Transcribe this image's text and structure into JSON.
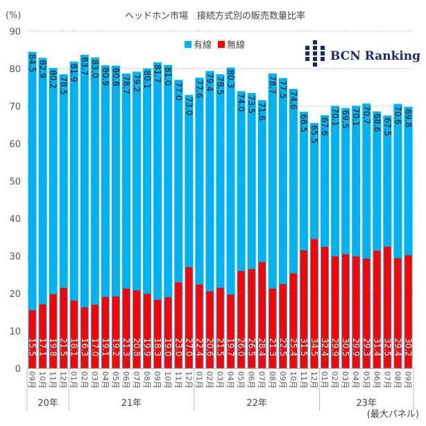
{
  "chart_data": {
    "type": "bar",
    "title": "ヘッドホン市場　接続方式別の販売数量比率",
    "ylabel": "(%)",
    "ylim": [
      0,
      90
    ],
    "yticks": [
      0,
      10,
      20,
      30,
      40,
      50,
      60,
      70,
      80,
      90
    ],
    "grid": true,
    "legend_position": "top-center",
    "note": "(最大パネル)",
    "logo_text": "BCN Ranking",
    "years": [
      {
        "label": "20年",
        "count": 4
      },
      {
        "label": "21年",
        "count": 12
      },
      {
        "label": "22年",
        "count": 12
      },
      {
        "label": "23年",
        "count": 9
      }
    ],
    "categories": [
      "09月",
      "10月",
      "11月",
      "12月",
      "01月",
      "02月",
      "03月",
      "04月",
      "05月",
      "06月",
      "07月",
      "08月",
      "09月",
      "10月",
      "11月",
      "12月",
      "01月",
      "02月",
      "03月",
      "04月",
      "05月",
      "06月",
      "07月",
      "08月",
      "09月",
      "10月",
      "11月",
      "12月",
      "01月",
      "02月",
      "03月",
      "04月",
      "05月",
      "06月",
      "07月",
      "08月",
      "09月"
    ],
    "series": [
      {
        "name": "有線",
        "color": "#00b0f0",
        "values": [
          84.5,
          82.9,
          80.2,
          78.5,
          81.9,
          83.7,
          83.0,
          80.9,
          80.8,
          78.7,
          79.2,
          80.1,
          81.7,
          81.0,
          77.0,
          73.0,
          77.6,
          79.4,
          78.5,
          80.3,
          74.0,
          73.5,
          71.6,
          78.7,
          77.5,
          74.6,
          68.5,
          65.5,
          67.6,
          70.1,
          69.5,
          70.1,
          70.7,
          68.6,
          67.5,
          70.6,
          69.8
        ]
      },
      {
        "name": "無線",
        "color": "#ff0000",
        "values": [
          15.5,
          17.1,
          19.8,
          21.5,
          18.1,
          16.3,
          17.0,
          19.1,
          19.2,
          21.3,
          20.8,
          19.9,
          18.3,
          19.0,
          23.0,
          27.0,
          22.4,
          20.6,
          21.5,
          19.7,
          26.0,
          26.5,
          28.4,
          21.3,
          22.5,
          25.4,
          31.5,
          34.5,
          32.4,
          29.9,
          30.5,
          29.9,
          29.3,
          31.4,
          32.5,
          29.4,
          30.2
        ]
      }
    ]
  }
}
